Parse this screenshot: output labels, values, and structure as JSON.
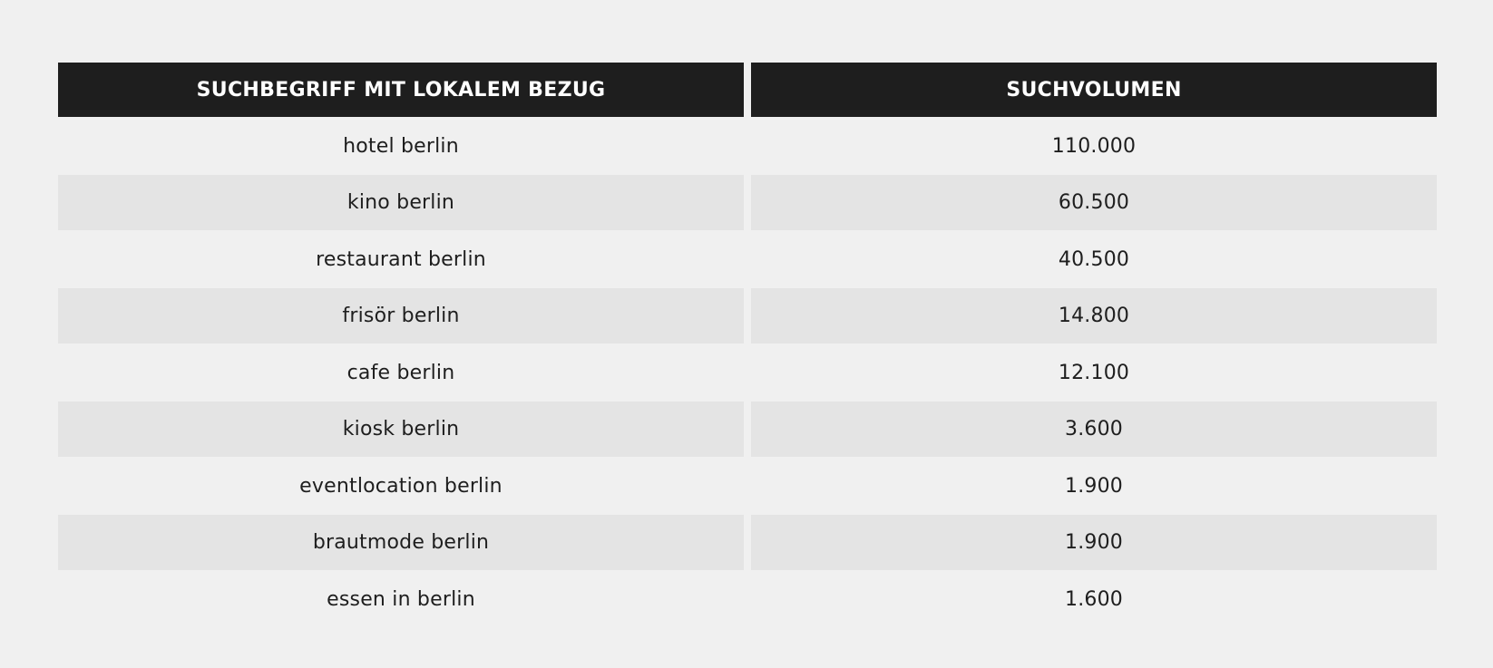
{
  "table": {
    "headers": [
      "SUCHBEGRIFF MIT LOKALEM BEZUG",
      "SUCHVOLUMEN"
    ],
    "rows": [
      {
        "term": "hotel berlin",
        "volume": "110.000"
      },
      {
        "term": "kino berlin",
        "volume": "60.500"
      },
      {
        "term": "restaurant berlin",
        "volume": "40.500"
      },
      {
        "term": "frisör berlin",
        "volume": "14.800"
      },
      {
        "term": "cafe berlin",
        "volume": "12.100"
      },
      {
        "term": "kiosk berlin",
        "volume": "3.600"
      },
      {
        "term": "eventlocation berlin",
        "volume": "1.900"
      },
      {
        "term": "brautmode berlin",
        "volume": "1.900"
      },
      {
        "term": "essen in berlin",
        "volume": "1.600"
      }
    ]
  }
}
